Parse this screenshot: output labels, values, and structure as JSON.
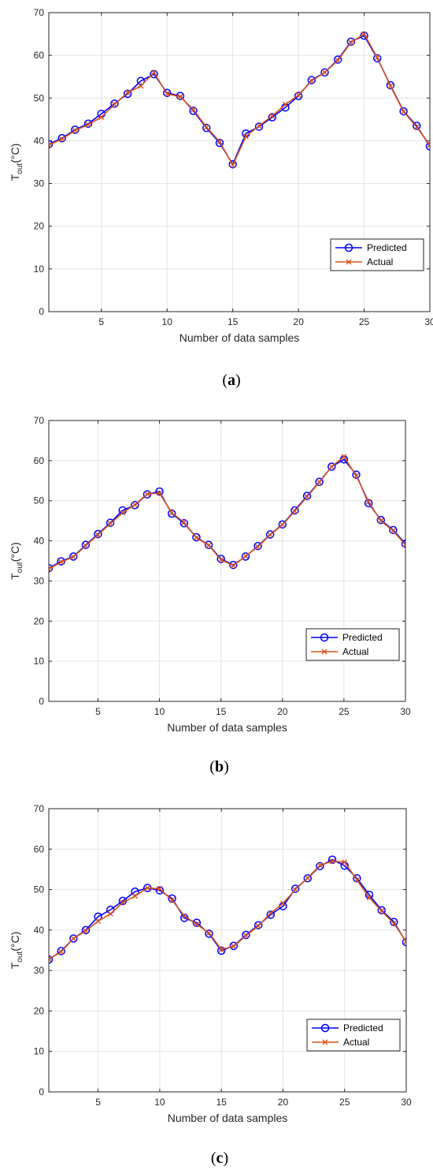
{
  "chart_data": [
    {
      "type": "line",
      "caption": "a",
      "xlabel": "Number of data samples",
      "ylabel_main": "T",
      "ylabel_sub": "out",
      "ylabel_unit": "(°C)",
      "xlim": [
        1,
        30
      ],
      "ylim": [
        0,
        70
      ],
      "xticks": [
        5,
        10,
        15,
        20,
        25,
        30
      ],
      "yticks": [
        0,
        10,
        20,
        30,
        40,
        50,
        60,
        70
      ],
      "grid": true,
      "legend_position": "lower-right",
      "x": [
        1,
        2,
        3,
        4,
        5,
        6,
        7,
        8,
        9,
        10,
        11,
        12,
        13,
        14,
        15,
        16,
        17,
        18,
        19,
        20,
        21,
        22,
        23,
        24,
        25,
        26,
        27,
        28,
        29,
        30
      ],
      "series": [
        {
          "name": "Predicted",
          "color": "#0000ff",
          "marker": "circle",
          "values": [
            39.2,
            40.6,
            42.6,
            44.0,
            46.3,
            48.7,
            51.0,
            54.0,
            55.6,
            51.2,
            50.5,
            47.0,
            43.0,
            39.5,
            34.5,
            41.7,
            43.3,
            45.5,
            47.8,
            50.5,
            54.2,
            56.0,
            59.0,
            63.2,
            64.6,
            59.3,
            53.0,
            46.9,
            43.5,
            38.7
          ]
        },
        {
          "name": "Actual",
          "color": "#d95319",
          "marker": "x",
          "values": [
            39.0,
            40.4,
            42.4,
            43.8,
            45.5,
            48.5,
            51.3,
            52.8,
            56.0,
            51.0,
            50.3,
            47.3,
            43.2,
            39.8,
            34.3,
            41.0,
            43.5,
            45.8,
            48.5,
            50.7,
            54.0,
            56.0,
            58.8,
            63.0,
            65.0,
            59.5,
            52.8,
            46.8,
            43.2,
            39.0
          ]
        }
      ]
    },
    {
      "type": "line",
      "caption": "b",
      "xlabel": "Number of data samples",
      "ylabel_main": "T",
      "ylabel_sub": "out",
      "ylabel_unit": "(°C)",
      "xlim": [
        1,
        30
      ],
      "ylim": [
        0,
        70
      ],
      "xticks": [
        5,
        10,
        15,
        20,
        25,
        30
      ],
      "yticks": [
        0,
        10,
        20,
        30,
        40,
        50,
        60,
        70
      ],
      "grid": true,
      "legend_position": "lower-right",
      "x": [
        1,
        2,
        3,
        4,
        5,
        6,
        7,
        8,
        9,
        10,
        11,
        12,
        13,
        14,
        15,
        16,
        17,
        18,
        19,
        20,
        21,
        22,
        23,
        24,
        25,
        26,
        27,
        28,
        29,
        30
      ],
      "series": [
        {
          "name": "Predicted",
          "color": "#0000ff",
          "marker": "circle",
          "values": [
            33.2,
            34.9,
            36.1,
            39.0,
            41.7,
            44.5,
            47.6,
            48.9,
            51.6,
            52.3,
            46.8,
            44.4,
            40.9,
            39.0,
            35.5,
            34.0,
            36.1,
            38.7,
            41.6,
            44.1,
            47.6,
            51.2,
            54.7,
            58.5,
            60.3,
            56.5,
            49.4,
            45.2,
            42.7,
            39.3
          ]
        },
        {
          "name": "Actual",
          "color": "#d95319",
          "marker": "x",
          "values": [
            33.0,
            34.7,
            36.0,
            38.8,
            41.5,
            44.3,
            47.0,
            49.0,
            51.7,
            51.9,
            47.0,
            44.6,
            40.8,
            38.9,
            35.3,
            33.8,
            36.2,
            38.5,
            41.5,
            44.0,
            47.4,
            51.0,
            54.6,
            58.5,
            61.0,
            56.2,
            49.8,
            45.0,
            42.5,
            39.0
          ]
        }
      ]
    },
    {
      "type": "line",
      "caption": "c",
      "xlabel": "Number of data samples",
      "ylabel_main": "T",
      "ylabel_sub": "out",
      "ylabel_unit": "(°C)",
      "xlim": [
        1,
        30
      ],
      "ylim": [
        0,
        70
      ],
      "xticks": [
        5,
        10,
        15,
        20,
        25,
        30
      ],
      "yticks": [
        0,
        10,
        20,
        30,
        40,
        50,
        60,
        70
      ],
      "grid": true,
      "legend_position": "lower-right",
      "x": [
        1,
        2,
        3,
        4,
        5,
        6,
        7,
        8,
        9,
        10,
        11,
        12,
        13,
        14,
        15,
        16,
        17,
        18,
        19,
        20,
        21,
        22,
        23,
        24,
        25,
        26,
        27,
        28,
        29,
        30
      ],
      "series": [
        {
          "name": "Predicted",
          "color": "#0000ff",
          "marker": "circle",
          "values": [
            32.7,
            34.8,
            37.9,
            40.0,
            43.3,
            45.0,
            47.2,
            49.5,
            50.4,
            49.8,
            47.8,
            43.0,
            41.8,
            39.1,
            34.9,
            36.1,
            38.8,
            41.2,
            43.8,
            45.9,
            50.2,
            52.8,
            55.8,
            57.4,
            55.9,
            52.8,
            48.7,
            44.9,
            42.0,
            37.0
          ]
        },
        {
          "name": "Actual",
          "color": "#d95319",
          "marker": "x",
          "values": [
            32.8,
            34.6,
            37.9,
            39.8,
            42.2,
            44.0,
            46.8,
            48.4,
            50.4,
            50.2,
            47.4,
            43.5,
            41.4,
            39.3,
            35.2,
            36.0,
            38.6,
            41.0,
            44.2,
            46.6,
            50.0,
            52.9,
            56.0,
            57.0,
            56.8,
            52.4,
            48.0,
            44.7,
            41.6,
            37.2
          ]
        }
      ]
    }
  ]
}
